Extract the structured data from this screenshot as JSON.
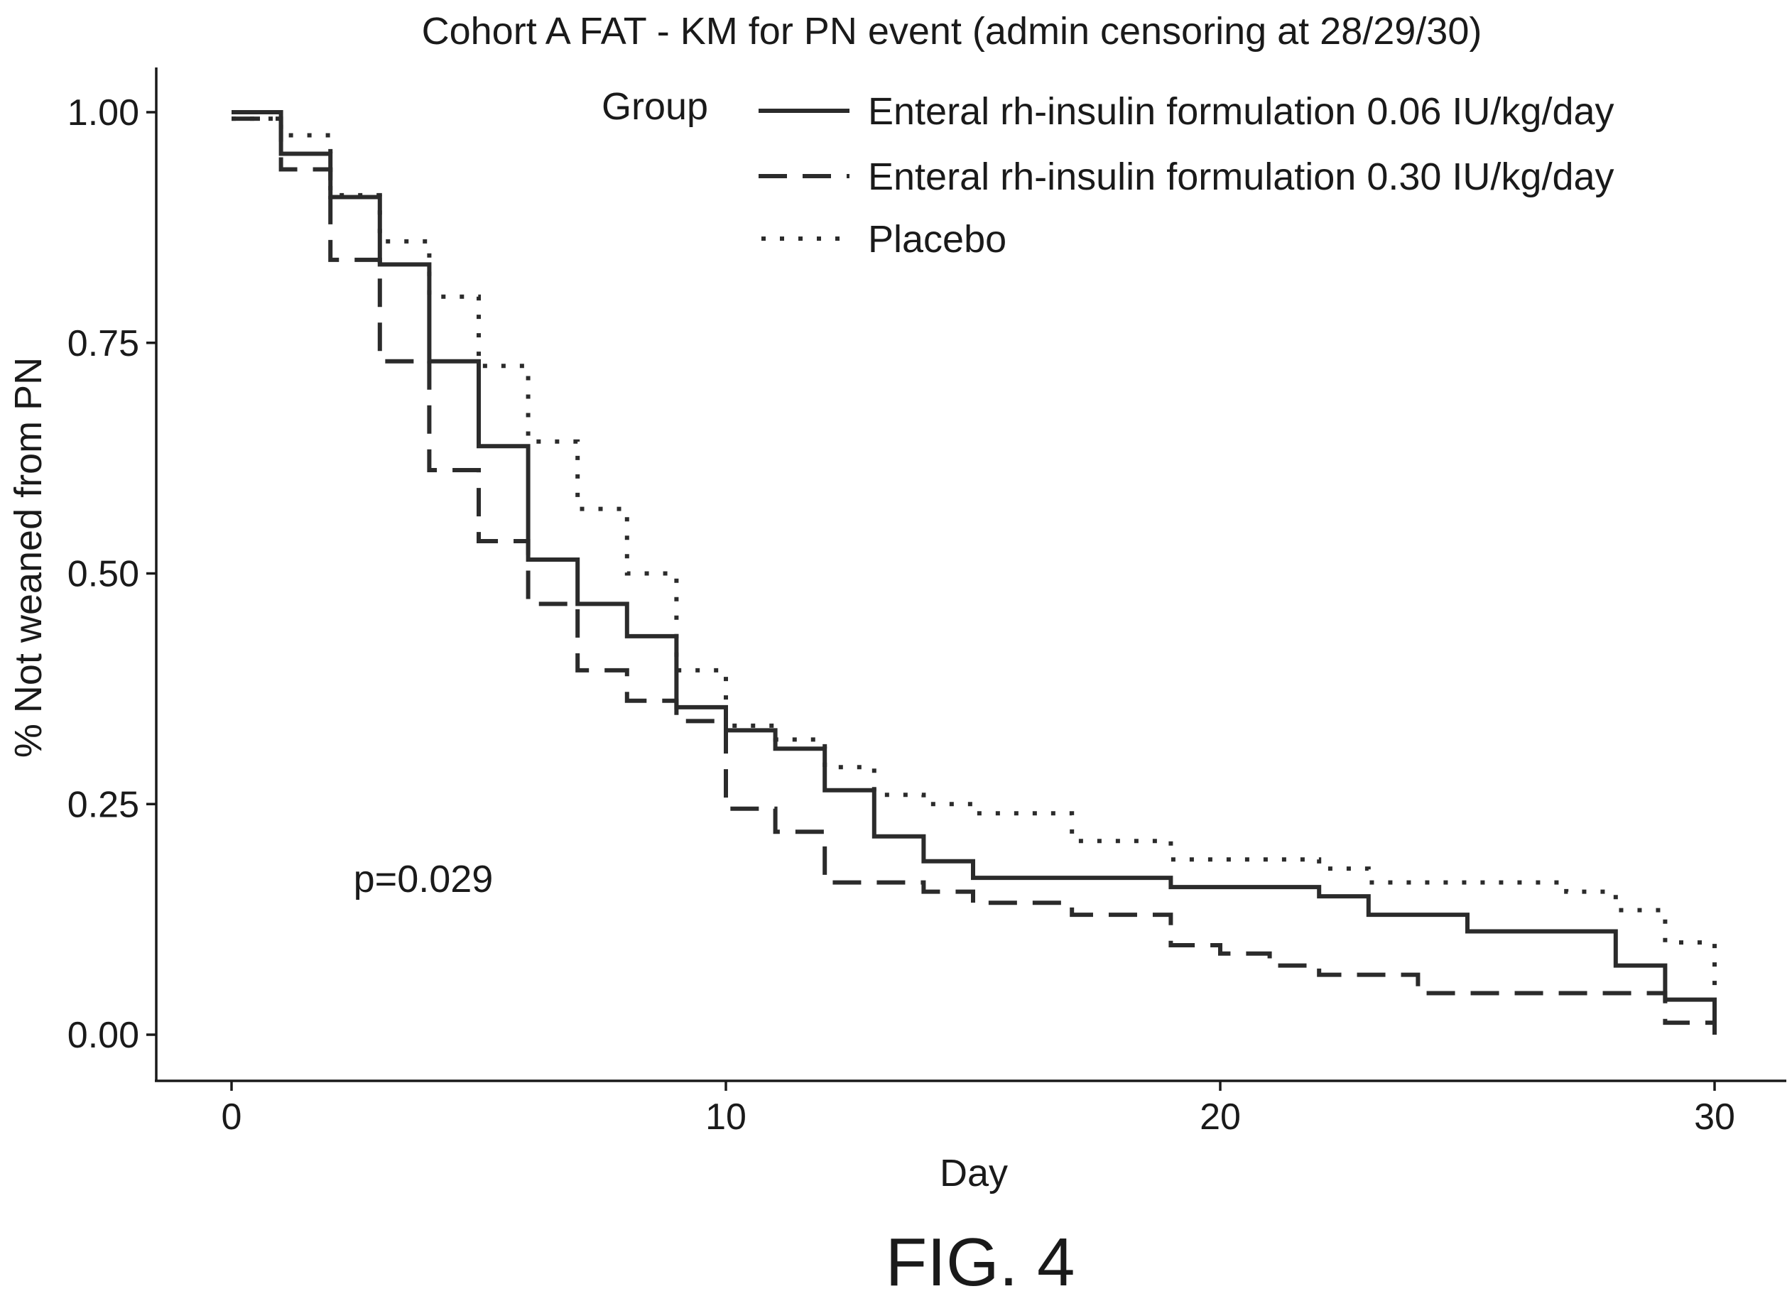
{
  "figure_label": "FIG. 4",
  "colors": {
    "ink": "#1a1a1a",
    "curve": "#2b2b2b",
    "background": "#ffffff"
  },
  "chart_data": {
    "type": "line",
    "subtype": "step (Kaplan-Meier survival)",
    "title": "Cohort A FAT - KM for PN event (admin censoring at 28/29/30)",
    "xlabel": "Day",
    "ylabel": "% Not weaned from PN",
    "xlim": [
      -1.5,
      31.5
    ],
    "ylim": [
      -0.05,
      1.05
    ],
    "x_ticks": [
      0,
      10,
      20,
      30
    ],
    "x_tick_labels": [
      "0",
      "10",
      "20",
      "30"
    ],
    "y_ticks": [
      0,
      0.25,
      0.5,
      0.75,
      1.0
    ],
    "y_tick_labels": [
      "0.00",
      "0.25",
      "0.50",
      "0.75",
      "1.00"
    ],
    "grid": false,
    "legend": {
      "title": "Group",
      "position": "top-right",
      "entries": [
        {
          "label": "Enteral rh-insulin formulation 0.06 IU/kg/day",
          "style": "solid"
        },
        {
          "label": "Enteral rh-insulin formulation 0.30 IU/kg/day",
          "style": "dashed"
        },
        {
          "label": "Placebo",
          "style": "dotted"
        }
      ]
    },
    "annotations": [
      {
        "text": "p=0.029",
        "x": 3.4,
        "y": 0.17
      }
    ],
    "series": [
      {
        "name": "Enteral rh-insulin formulation 0.06 IU/kg/day",
        "style": "solid",
        "steps": [
          [
            0,
            1.0
          ],
          [
            1,
            0.955
          ],
          [
            2,
            0.908
          ],
          [
            3,
            0.835
          ],
          [
            4,
            0.73
          ],
          [
            5,
            0.638
          ],
          [
            6,
            0.515
          ],
          [
            7,
            0.467
          ],
          [
            8,
            0.432
          ],
          [
            9,
            0.355
          ],
          [
            10,
            0.33
          ],
          [
            11,
            0.31
          ],
          [
            12,
            0.265
          ],
          [
            13,
            0.215
          ],
          [
            14,
            0.188
          ],
          [
            15,
            0.17
          ],
          [
            19,
            0.16
          ],
          [
            22,
            0.15
          ],
          [
            23,
            0.13
          ],
          [
            25,
            0.112
          ],
          [
            28,
            0.075
          ],
          [
            29,
            0.038
          ],
          [
            30,
            0.0
          ]
        ]
      },
      {
        "name": "Enteral rh-insulin formulation 0.30 IU/kg/day",
        "style": "dashed",
        "steps": [
          [
            0,
            0.993
          ],
          [
            1,
            0.938
          ],
          [
            2,
            0.84
          ],
          [
            3,
            0.73
          ],
          [
            4,
            0.612
          ],
          [
            5,
            0.535
          ],
          [
            6,
            0.467
          ],
          [
            7,
            0.395
          ],
          [
            8,
            0.362
          ],
          [
            9,
            0.34
          ],
          [
            10,
            0.245
          ],
          [
            11,
            0.22
          ],
          [
            12,
            0.165
          ],
          [
            14,
            0.155
          ],
          [
            15,
            0.143
          ],
          [
            17,
            0.13
          ],
          [
            19,
            0.097
          ],
          [
            20,
            0.088
          ],
          [
            21,
            0.075
          ],
          [
            22,
            0.065
          ],
          [
            24,
            0.045
          ],
          [
            29,
            0.013
          ],
          [
            30,
            0.013
          ]
        ]
      },
      {
        "name": "Placebo",
        "style": "dotted",
        "steps": [
          [
            0,
            0.993
          ],
          [
            1,
            0.975
          ],
          [
            2,
            0.91
          ],
          [
            3,
            0.86
          ],
          [
            4,
            0.8
          ],
          [
            5,
            0.725
          ],
          [
            6,
            0.643
          ],
          [
            7,
            0.57
          ],
          [
            8,
            0.5
          ],
          [
            9,
            0.395
          ],
          [
            10,
            0.335
          ],
          [
            11,
            0.32
          ],
          [
            12,
            0.29
          ],
          [
            13,
            0.26
          ],
          [
            14,
            0.25
          ],
          [
            15,
            0.24
          ],
          [
            17,
            0.21
          ],
          [
            19,
            0.19
          ],
          [
            22,
            0.18
          ],
          [
            23,
            0.165
          ],
          [
            27,
            0.155
          ],
          [
            28,
            0.135
          ],
          [
            29,
            0.1
          ],
          [
            30,
            0.045
          ]
        ]
      }
    ]
  }
}
